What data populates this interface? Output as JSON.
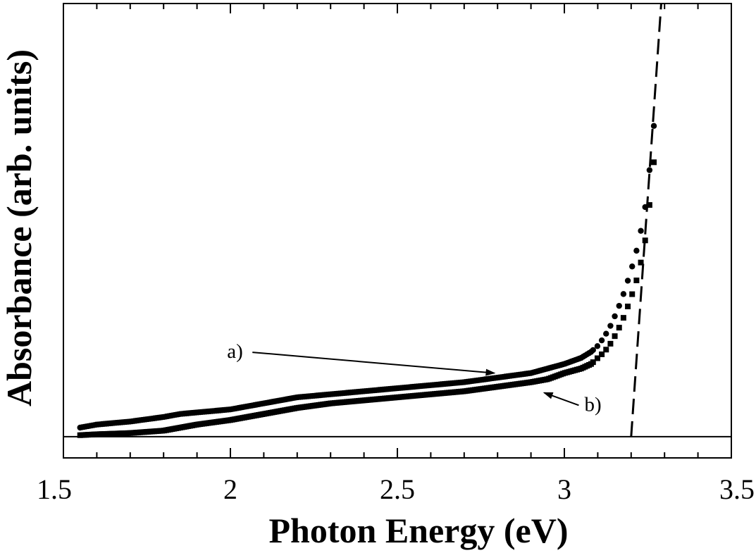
{
  "chart_data": {
    "type": "scatter",
    "xlabel": "Photon Energy (eV)",
    "ylabel": "Absorbance (arb. units)",
    "xlim": [
      1.5,
      3.5
    ],
    "ylim": [
      -0.07,
      1.43
    ],
    "xticks": [
      "1.5",
      "2",
      "2.5",
      "3",
      "3.5"
    ],
    "grid": false,
    "legend": "none",
    "baseline_y": 0,
    "series": [
      {
        "marker": "circle",
        "x": [
          1.55,
          1.6,
          1.7,
          1.8,
          1.85,
          1.9,
          2.0,
          2.1,
          2.2,
          2.3,
          2.4,
          2.5,
          2.6,
          2.7,
          2.8,
          2.9,
          2.95,
          3.0,
          3.05,
          3.08,
          3.1,
          3.12,
          3.14,
          3.16,
          3.18,
          3.2,
          3.22,
          3.24,
          3.25,
          3.26,
          3.27
        ],
        "y": [
          0.03,
          0.04,
          0.05,
          0.065,
          0.075,
          0.08,
          0.09,
          0.11,
          0.13,
          0.14,
          0.15,
          0.16,
          0.17,
          0.18,
          0.195,
          0.21,
          0.225,
          0.24,
          0.26,
          0.28,
          0.3,
          0.33,
          0.37,
          0.42,
          0.48,
          0.55,
          0.63,
          0.74,
          0.83,
          0.93,
          1.05
        ]
      },
      {
        "marker": "square",
        "x": [
          1.55,
          1.6,
          1.7,
          1.8,
          1.85,
          1.9,
          2.0,
          2.1,
          2.2,
          2.3,
          2.4,
          2.5,
          2.6,
          2.7,
          2.8,
          2.9,
          2.95,
          3.0,
          3.05,
          3.08,
          3.1,
          3.12,
          3.14,
          3.16,
          3.18,
          3.2,
          3.22,
          3.24,
          3.25,
          3.26,
          3.27
        ],
        "y": [
          0.005,
          0.008,
          0.012,
          0.02,
          0.03,
          0.04,
          0.055,
          0.075,
          0.095,
          0.11,
          0.12,
          0.13,
          0.14,
          0.15,
          0.165,
          0.18,
          0.19,
          0.21,
          0.225,
          0.24,
          0.26,
          0.28,
          0.31,
          0.35,
          0.4,
          0.46,
          0.53,
          0.63,
          0.72,
          0.81,
          0.93
        ]
      }
    ],
    "fit_line": {
      "style": "dashed",
      "x": [
        3.2,
        3.29
      ],
      "y": [
        0,
        1.43
      ]
    },
    "annotations": [
      {
        "text": "a)",
        "x": 1.99,
        "y": 0.26,
        "arrow_to": [
          2.79,
          0.21
        ]
      },
      {
        "text": "b)",
        "x": 3.06,
        "y": 0.085,
        "arrow_to": [
          2.94,
          0.145
        ]
      }
    ]
  }
}
